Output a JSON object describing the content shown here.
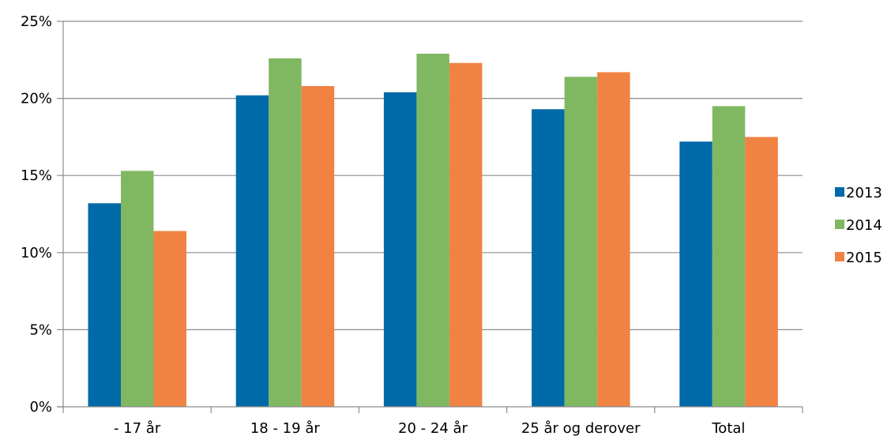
{
  "chart_data": {
    "type": "bar",
    "categories": [
      "- 17 år",
      "18 - 19 år",
      "20 - 24 år",
      "25 år og derover",
      "Total"
    ],
    "series": [
      {
        "name": "2013",
        "color": "#006aa8",
        "values": [
          0.132,
          0.202,
          0.204,
          0.193,
          0.172
        ]
      },
      {
        "name": "2014",
        "color": "#80b862",
        "values": [
          0.153,
          0.226,
          0.229,
          0.214,
          0.195
        ]
      },
      {
        "name": "2015",
        "color": "#f08244",
        "values": [
          0.114,
          0.208,
          0.223,
          0.217,
          0.175
        ]
      }
    ],
    "ylim": [
      0,
      0.25
    ],
    "yticks": [
      0,
      0.05,
      0.1,
      0.15,
      0.2,
      0.25
    ],
    "ytick_labels": [
      "0%",
      "5%",
      "10%",
      "15%",
      "20%",
      "25%"
    ],
    "grid": true,
    "legend_position": "right"
  }
}
